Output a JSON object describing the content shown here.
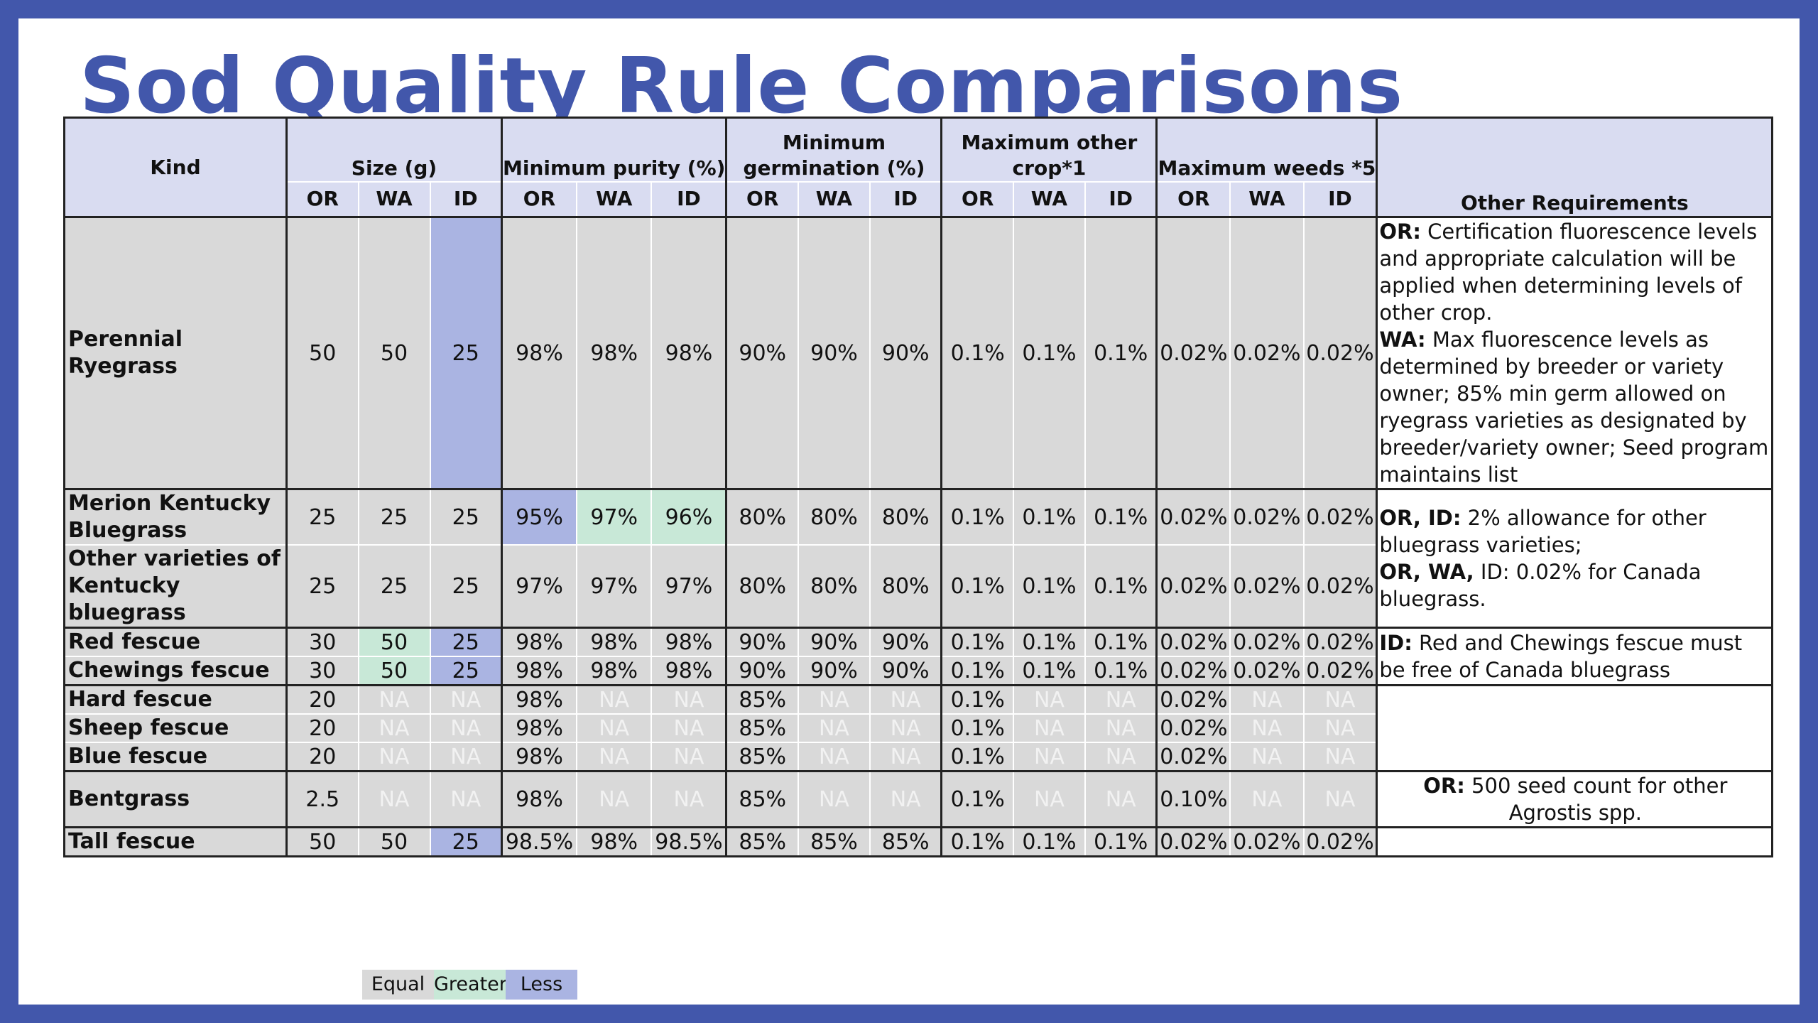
{
  "title": "Sod Quality Rule Comparisons",
  "headers": {
    "kind": "Kind",
    "size": "Size (g)",
    "purity": "Minimum purity (%)",
    "germ_line1": "Minimum",
    "germ_line2": "germination (%)",
    "other_crop_line1": "Maximum other",
    "other_crop_line2": "crop*1",
    "weeds": "Maximum weeds *5",
    "other_req": "Other Requirements",
    "or": "OR",
    "wa": "WA",
    "id": "ID"
  },
  "legend": {
    "equal": "Equal",
    "greater": "Greater",
    "less": "Less"
  },
  "colors": {
    "border": "#4257ab",
    "title": "#4257ab",
    "header": "#d9dcf1",
    "equal": "#d9d9d9",
    "greater": "#c8e8d7",
    "less": "#aab4e2"
  },
  "rows": [
    {
      "kind": "Perennial Ryegrass",
      "values": [
        "50",
        "50",
        "25",
        "98%",
        "98%",
        "98%",
        "90%",
        "90%",
        "90%",
        "0.1%",
        "0.1%",
        "0.1%",
        "0.02%",
        "0.02%",
        "0.02%"
      ]
    },
    {
      "kind": "Merion Kentucky Bluegrass",
      "values": [
        "25",
        "25",
        "25",
        "95%",
        "97%",
        "96%",
        "80%",
        "80%",
        "80%",
        "0.1%",
        "0.1%",
        "0.1%",
        "0.02%",
        "0.02%",
        "0.02%"
      ]
    },
    {
      "kind": "Other varieties of Kentucky bluegrass",
      "values": [
        "25",
        "25",
        "25",
        "97%",
        "97%",
        "97%",
        "80%",
        "80%",
        "80%",
        "0.1%",
        "0.1%",
        "0.1%",
        "0.02%",
        "0.02%",
        "0.02%"
      ]
    },
    {
      "kind": "Red fescue",
      "values": [
        "30",
        "50",
        "25",
        "98%",
        "98%",
        "98%",
        "90%",
        "90%",
        "90%",
        "0.1%",
        "0.1%",
        "0.1%",
        "0.02%",
        "0.02%",
        "0.02%"
      ]
    },
    {
      "kind": "Chewings fescue",
      "values": [
        "30",
        "50",
        "25",
        "98%",
        "98%",
        "98%",
        "90%",
        "90%",
        "90%",
        "0.1%",
        "0.1%",
        "0.1%",
        "0.02%",
        "0.02%",
        "0.02%"
      ]
    },
    {
      "kind": "Hard fescue",
      "values": [
        "20",
        "NA",
        "NA",
        "98%",
        "NA",
        "NA",
        "85%",
        "NA",
        "NA",
        "0.1%",
        "NA",
        "NA",
        "0.02%",
        "NA",
        "NA"
      ]
    },
    {
      "kind": "Sheep fescue",
      "values": [
        "20",
        "NA",
        "NA",
        "98%",
        "NA",
        "NA",
        "85%",
        "NA",
        "NA",
        "0.1%",
        "NA",
        "NA",
        "0.02%",
        "NA",
        "NA"
      ]
    },
    {
      "kind": "Blue fescue",
      "values": [
        "20",
        "NA",
        "NA",
        "98%",
        "NA",
        "NA",
        "85%",
        "NA",
        "NA",
        "0.1%",
        "NA",
        "NA",
        "0.02%",
        "NA",
        "NA"
      ]
    },
    {
      "kind": "Bentgrass",
      "values": [
        "2.5",
        "NA",
        "NA",
        "98%",
        "NA",
        "NA",
        "85%",
        "NA",
        "NA",
        "0.1%",
        "NA",
        "NA",
        "0.10%",
        "NA",
        "NA"
      ]
    },
    {
      "kind": "Tall fescue",
      "values": [
        "50",
        "50",
        "25",
        "98.5%",
        "98%",
        "98.5%",
        "85%",
        "85%",
        "85%",
        "0.1%",
        "0.1%",
        "0.1%",
        "0.02%",
        "0.02%",
        "0.02%"
      ]
    }
  ],
  "other_requirements": {
    "ryegrass": [
      {
        "label": "OR:",
        "text": " Certification fluorescence levels and appropriate calculation will be applied when determining levels of other crop."
      },
      {
        "label": "WA:",
        "text": " Max fluorescence levels as determined by breeder or variety owner; 85% min germ allowed on ryegrass varieties as designated by breeder/variety owner; Seed program maintains list"
      }
    ],
    "bluegrass": [
      {
        "label": "OR, ID:",
        "text": " 2% allowance for other bluegrass varieties;"
      },
      {
        "label": "OR, WA,",
        "text": " ID: 0.02% for Canada bluegrass."
      }
    ],
    "fescue": [
      {
        "label": "ID:",
        "text": " Red and Chewings fescue must be free of Canada bluegrass"
      }
    ],
    "bentgrass": [
      {
        "label": "OR:",
        "text": " 500 seed count for other Agrostis spp."
      }
    ]
  }
}
